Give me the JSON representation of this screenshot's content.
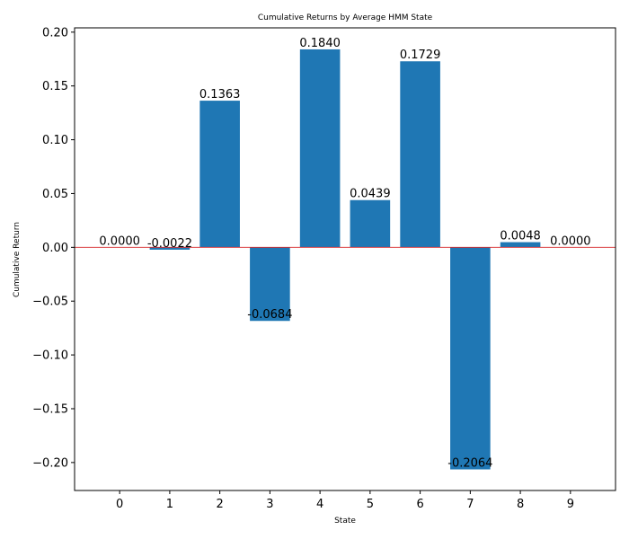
{
  "chart_data": {
    "type": "bar",
    "title": "Cumulative Returns by Average HMM State",
    "xlabel": "State",
    "ylabel": "Cumulative Return",
    "categories": [
      "0",
      "1",
      "2",
      "3",
      "4",
      "5",
      "6",
      "7",
      "8",
      "9"
    ],
    "values": [
      0.0,
      -0.0022,
      0.1363,
      -0.0684,
      0.184,
      0.0439,
      0.1729,
      -0.2064,
      0.0048,
      0.0
    ],
    "value_labels": [
      "0.0000",
      "-0.0022",
      "0.1363",
      "-0.0684",
      "0.1840",
      "0.0439",
      "0.1729",
      "-0.2064",
      "0.0048",
      "0.0000"
    ],
    "ylim": [
      -0.226,
      0.204
    ],
    "yticks": [
      -0.2,
      -0.15,
      -0.1,
      -0.05,
      0.0,
      0.05,
      0.1,
      0.15,
      0.2
    ],
    "ytick_labels": [
      "−0.20",
      "−0.15",
      "−0.10",
      "−0.05",
      "0.00",
      "0.05",
      "0.10",
      "0.15",
      "0.20"
    ],
    "grid": false,
    "bar_color": "#1f77b4",
    "zero_line_color": "#d62728"
  }
}
